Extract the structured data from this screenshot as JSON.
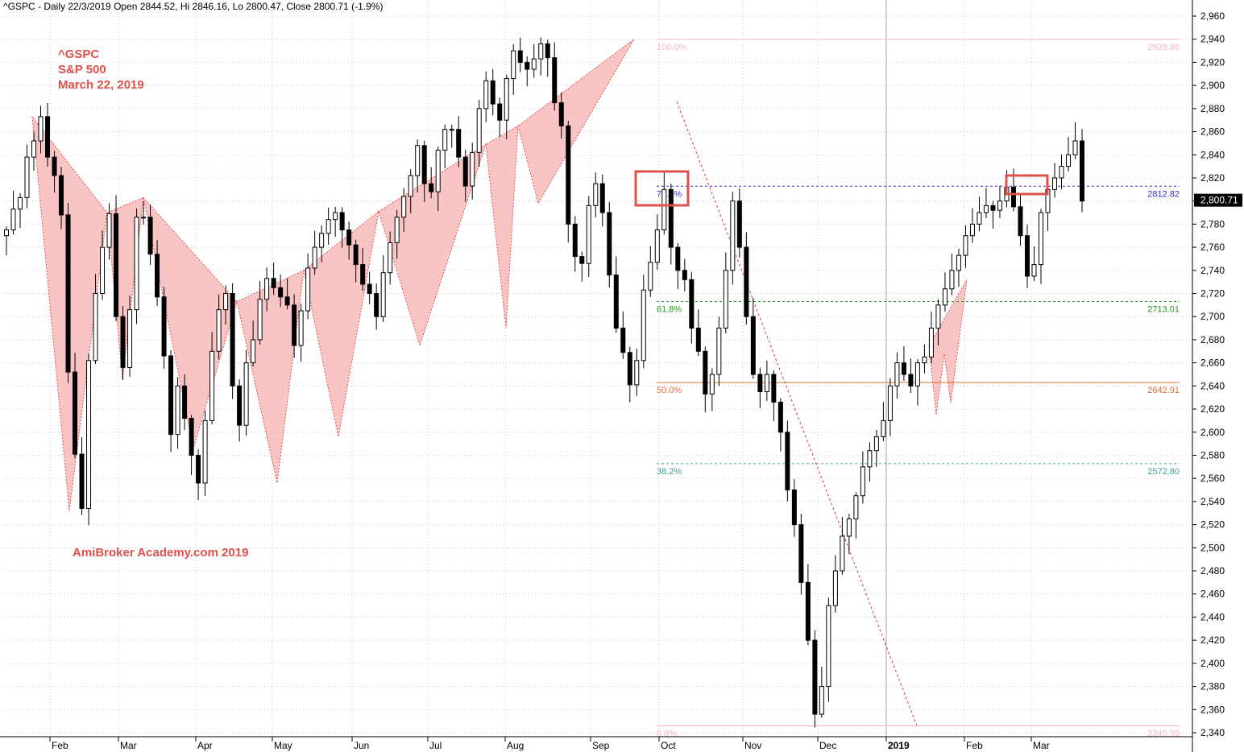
{
  "header": {
    "symbol": "^GSPC",
    "period": "Daily",
    "date": "22/3/2019",
    "open_label": "Open",
    "open": "2844.52",
    "high_label": "Hi",
    "high": "2846.16",
    "low_label": "Lo",
    "low": "2800.47",
    "close_label": "Close",
    "close": "2800.71",
    "change": "(-1.9%)"
  },
  "annotations": {
    "ticker": "^GSPC",
    "name": "S&P 500",
    "date": "March 22, 2019",
    "watermark": "AmiBroker Academy.com   2019"
  },
  "colors": {
    "zigzag_fill": "#f5b0b0",
    "zigzag_line": "#e03030",
    "fib_100": "#f5b6c8",
    "fib_786": "#3030c8",
    "fib_618": "#209a20",
    "fib_500": "#e07030",
    "fib_382": "#40a0a0",
    "fib_0": "#f5b6c8",
    "highlight_box": "#e0504a",
    "last_price_bg": "#000000"
  },
  "chart_data": {
    "type": "candlestick",
    "title": "^GSPC - Daily 22/3/2019",
    "ylim": [
      2335,
      2968
    ],
    "y_ticks": [
      2340,
      2360,
      2380,
      2400,
      2420,
      2440,
      2460,
      2480,
      2500,
      2520,
      2540,
      2560,
      2580,
      2600,
      2620,
      2640,
      2660,
      2680,
      2700,
      2720,
      2740,
      2760,
      2780,
      2800,
      2820,
      2840,
      2860,
      2880,
      2900,
      2920,
      2940,
      2960
    ],
    "x_labels": [
      "Feb",
      "Mar",
      "Apr",
      "May",
      "Jun",
      "Jul",
      "Aug",
      "Sep",
      "Oct",
      "Nov",
      "Dec",
      "2019",
      "Feb",
      "Mar"
    ],
    "last_price": "2,800.71",
    "grid": true,
    "fibonacci": [
      {
        "label": "100.0%",
        "value": 2939.86,
        "value_label": "2939.86"
      },
      {
        "label": "78.6%",
        "value": 2812.82,
        "value_label": "2812.82"
      },
      {
        "label": "61.8%",
        "value": 2713.01,
        "value_label": "2713.01"
      },
      {
        "label": "50.0%",
        "value": 2642.91,
        "value_label": "2642.91"
      },
      {
        "label": "38.2%",
        "value": 2572.8,
        "value_label": "2572.80"
      },
      {
        "label": "0.0%",
        "value": 2345.95,
        "value_label": "2345.95"
      }
    ],
    "zigzag_pivots": [
      2873,
      2790,
      2803,
      2713,
      2740,
      2791,
      2849,
      2865,
      2940
    ],
    "zigzag_lows": [
      2532,
      2646,
      2586,
      2556,
      2596,
      2675,
      2690,
      2798,
      2810,
      2865
    ],
    "swing_line": [
      2886,
      2346
    ],
    "series_close_points": [
      2775,
      2793,
      2803,
      2838,
      2852,
      2873,
      2838,
      2822,
      2788,
      2652,
      2581,
      2534,
      2662,
      2720,
      2760,
      2789,
      2700,
      2656,
      2706,
      2786,
      2786,
      2754,
      2717,
      2666,
      2598,
      2640,
      2612,
      2580,
      2556,
      2610,
      2670,
      2706,
      2720,
      2640,
      2606,
      2660,
      2680,
      2715,
      2733,
      2725,
      2717,
      2710,
      2675,
      2705,
      2742,
      2760,
      2772,
      2784,
      2790,
      2775,
      2762,
      2745,
      2728,
      2720,
      2700,
      2738,
      2764,
      2786,
      2804,
      2822,
      2848,
      2815,
      2808,
      2844,
      2862,
      2862,
      2838,
      2813,
      2842,
      2880,
      2904,
      2884,
      2870,
      2906,
      2930,
      2920,
      2914,
      2923,
      2936,
      2924,
      2885,
      2865,
      2780,
      2752,
      2746,
      2796,
      2815,
      2790,
      2736,
      2690,
      2669,
      2641,
      2662,
      2723,
      2747,
      2775,
      2810,
      2760,
      2740,
      2732,
      2690,
      2670,
      2633,
      2650,
      2690,
      2740,
      2800,
      2760,
      2700,
      2650,
      2635,
      2650,
      2626,
      2600,
      2550,
      2520,
      2470,
      2420,
      2356,
      2380,
      2450,
      2480,
      2510,
      2525,
      2545,
      2570,
      2584,
      2596,
      2610,
      2640,
      2660,
      2650,
      2640,
      2660,
      2665,
      2690,
      2710,
      2724,
      2740,
      2753,
      2770,
      2780,
      2790,
      2796,
      2792,
      2800,
      2812,
      2795,
      2770,
      2735,
      2745,
      2790,
      2810,
      2820,
      2830,
      2840,
      2852,
      2800
    ]
  }
}
